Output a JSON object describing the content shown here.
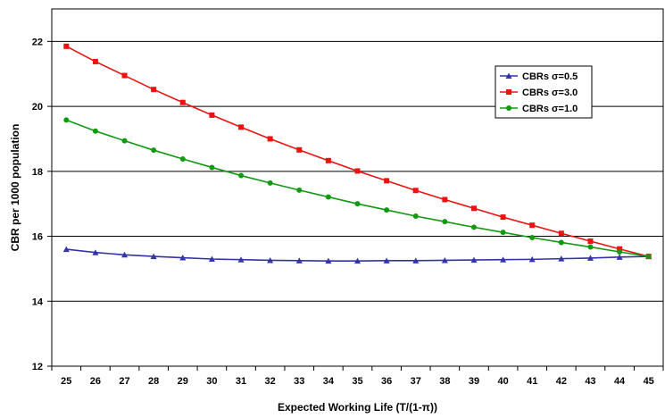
{
  "chart_data": {
    "type": "line",
    "title": "",
    "xlabel": "Expected Working Life (T/(1-π))",
    "ylabel": "CBR per 1000 population",
    "ylim": [
      12,
      23
    ],
    "y_ticks": [
      "12",
      "14",
      "16",
      "18",
      "20",
      "22"
    ],
    "grid": "horizontal",
    "legend_position": "right",
    "categories": [
      "25",
      "26",
      "27",
      "28",
      "29",
      "30",
      "31",
      "32",
      "33",
      "34",
      "35",
      "36",
      "37",
      "38",
      "39",
      "40",
      "41",
      "42",
      "43",
      "44",
      "45"
    ],
    "series": [
      {
        "name": "CBRs σ=0.5",
        "color": "#3333aa",
        "marker": "triangle",
        "values": [
          15.6,
          15.5,
          15.43,
          15.38,
          15.34,
          15.3,
          15.28,
          15.26,
          15.25,
          15.24,
          15.24,
          15.25,
          15.25,
          15.26,
          15.27,
          15.28,
          15.29,
          15.31,
          15.33,
          15.36,
          15.38
        ]
      },
      {
        "name": "CBRs σ=3.0",
        "color": "#ee1111",
        "marker": "square",
        "values": [
          21.85,
          21.38,
          20.95,
          20.52,
          20.12,
          19.73,
          19.36,
          19.0,
          18.66,
          18.33,
          18.01,
          17.71,
          17.41,
          17.13,
          16.86,
          16.59,
          16.34,
          16.09,
          15.85,
          15.61,
          15.38
        ]
      },
      {
        "name": "CBRs σ=1.0",
        "color": "#119911",
        "marker": "circle",
        "values": [
          19.58,
          19.24,
          18.94,
          18.65,
          18.38,
          18.12,
          17.87,
          17.64,
          17.42,
          17.21,
          17.0,
          16.81,
          16.62,
          16.45,
          16.28,
          16.12,
          15.96,
          15.81,
          15.67,
          15.52,
          15.38
        ]
      }
    ]
  }
}
